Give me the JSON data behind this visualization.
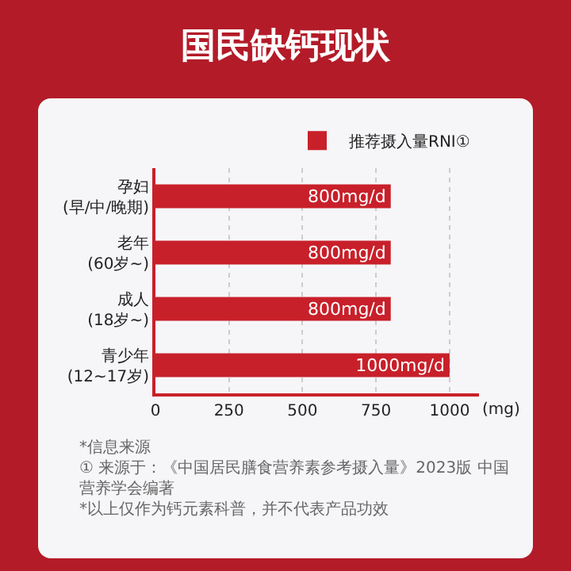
{
  "chart_data": {
    "type": "bar",
    "orientation": "horizontal",
    "title": "国民缺钙现状",
    "categories": [
      "孕妇\n(早/中/晚期)",
      "老年\n(60岁~)",
      "成人\n(18岁~)",
      "青少年\n(12~17岁)"
    ],
    "series": [
      {
        "name": "推荐摄入量RNI①",
        "color": "#c8202a",
        "values": [
          800,
          800,
          800,
          1000
        ],
        "value_labels": [
          "800mg/d",
          "800mg/d",
          "800mg/d",
          "1000mg/d"
        ]
      }
    ],
    "xlabel": "(mg)",
    "xlim": [
      0,
      1100
    ],
    "xticks": [
      0,
      250,
      500,
      750,
      1000
    ],
    "grid": "x",
    "legend": "top right",
    "annotations": [
      "*信息来源",
      "① 来源于：《中国居民膳食营养素参考摄入量》2023版 中国营养学会编著",
      "*以上仅作为钙元素科普，并不代表产品功效"
    ]
  }
}
